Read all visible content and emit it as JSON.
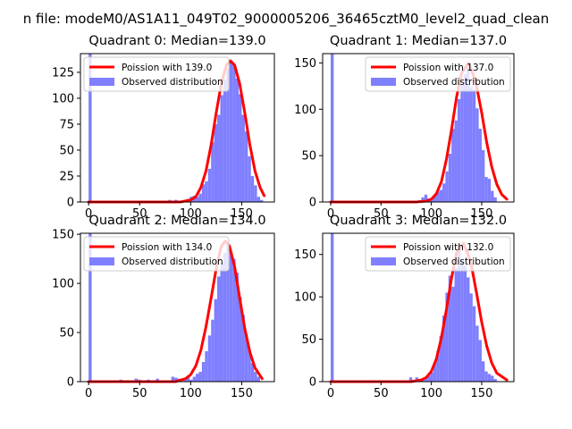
{
  "figure": {
    "suptitle": "n file: modeM0/AS1A11_049T02_9000005206_36465cztM0_level2_quad_clean"
  },
  "colors": {
    "hist": "#7f7fff",
    "poisson": "#ff0000",
    "axis": "#000000",
    "background": "#ffffff"
  },
  "chart_data": [
    {
      "type": "bar",
      "title": "Quadrant 0: Median=139.0",
      "xlim": [
        -8,
        182
      ],
      "ylim": [
        0,
        143
      ],
      "xticks": [
        0,
        50,
        100,
        150
      ],
      "yticks": [
        0,
        25,
        50,
        75,
        100,
        125
      ],
      "legend": {
        "placement": "top-left",
        "line_label": "Poission with 139.0",
        "hist_label": "Observed distribution"
      },
      "bin_width": 3,
      "hist": {
        "x": [
          0,
          78,
          84,
          87,
          93,
          96,
          99,
          102,
          105,
          108,
          111,
          114,
          117,
          120,
          123,
          126,
          129,
          132,
          135,
          138,
          141,
          144,
          147,
          150,
          153,
          156,
          159,
          162,
          165,
          168
        ],
        "y": [
          143,
          2,
          2,
          1,
          2,
          3,
          5,
          6,
          5,
          8,
          17,
          20,
          32,
          58,
          75,
          84,
          103,
          118,
          128,
          136,
          132,
          119,
          104,
          84,
          68,
          44,
          25,
          16,
          5,
          2
        ]
      },
      "poisson": {
        "mu": 139.0,
        "x": [
          0,
          90,
          100,
          105,
          110,
          115,
          120,
          125,
          130,
          135,
          139,
          143,
          148,
          153,
          158,
          163,
          168,
          172
        ],
        "y": [
          0,
          0,
          2,
          5,
          14,
          30,
          55,
          86,
          114,
          132,
          136,
          132,
          114,
          86,
          55,
          30,
          14,
          6
        ]
      }
    },
    {
      "type": "bar",
      "title": "Quadrant 1: Median=137.0",
      "xlim": [
        -8,
        182
      ],
      "ylim": [
        0,
        160
      ],
      "xticks": [
        0,
        50,
        100,
        150
      ],
      "yticks": [
        0,
        50,
        100,
        150
      ],
      "legend": {
        "placement": "top-right",
        "line_label": "Poission with 137.0",
        "hist_label": "Observed distribution"
      },
      "bin_width": 3,
      "hist": {
        "x": [
          0,
          87,
          90,
          93,
          96,
          99,
          102,
          105,
          108,
          111,
          114,
          117,
          120,
          123,
          126,
          129,
          132,
          135,
          138,
          141,
          144,
          147,
          150,
          153,
          156,
          159,
          162
        ],
        "y": [
          160,
          2,
          5,
          8,
          4,
          3,
          8,
          11,
          13,
          20,
          33,
          52,
          79,
          88,
          111,
          128,
          138,
          145,
          124,
          121,
          101,
          79,
          56,
          27,
          25,
          12,
          5
        ]
      },
      "poisson": {
        "mu": 137.0,
        "x": [
          0,
          85,
          95,
          100,
          105,
          110,
          115,
          120,
          125,
          130,
          137,
          144,
          150,
          155,
          160,
          165,
          170,
          175
        ],
        "y": [
          0,
          0,
          1,
          3,
          9,
          22,
          46,
          78,
          113,
          139,
          150,
          130,
          96,
          64,
          38,
          19,
          8,
          3
        ]
      }
    },
    {
      "type": "bar",
      "title": "Quadrant 2: Median=134.0",
      "xlim": [
        -8,
        182
      ],
      "ylim": [
        0,
        151
      ],
      "xticks": [
        0,
        50,
        100,
        150
      ],
      "yticks": [
        0,
        50,
        100,
        150
      ],
      "legend": {
        "placement": "top-left",
        "line_label": "Poission with 134.0",
        "hist_label": "Observed distribution"
      },
      "bin_width": 3,
      "hist": {
        "x": [
          0,
          30,
          45,
          48,
          57,
          66,
          81,
          84,
          87,
          93,
          96,
          99,
          102,
          105,
          108,
          111,
          114,
          117,
          120,
          123,
          126,
          129,
          132,
          135,
          138,
          141,
          144,
          147,
          150,
          153,
          156,
          159,
          162,
          165
        ],
        "y": [
          151,
          2,
          3,
          2,
          2,
          3,
          5,
          4,
          3,
          2,
          6,
          2,
          5,
          8,
          10,
          20,
          31,
          47,
          63,
          84,
          107,
          121,
          131,
          138,
          132,
          125,
          111,
          86,
          68,
          48,
          33,
          19,
          10,
          5
        ]
      },
      "poisson": {
        "mu": 134.0,
        "x": [
          0,
          85,
          95,
          100,
          105,
          110,
          115,
          120,
          125,
          130,
          134,
          138,
          143,
          148,
          153,
          158,
          163,
          170
        ],
        "y": [
          0,
          0,
          3,
          7,
          16,
          32,
          56,
          85,
          115,
          138,
          143,
          138,
          117,
          85,
          54,
          30,
          14,
          3
        ]
      }
    },
    {
      "type": "bar",
      "title": "Quadrant 3: Median=132.0",
      "xlim": [
        -8,
        182
      ],
      "ylim": [
        0,
        175
      ],
      "xticks": [
        0,
        50,
        100,
        150
      ],
      "yticks": [
        0,
        50,
        100,
        150
      ],
      "legend": {
        "placement": "top-right",
        "line_label": "Poission with 132.0",
        "hist_label": "Observed distribution"
      },
      "bin_width": 3,
      "hist": {
        "x": [
          0,
          78,
          81,
          84,
          87,
          90,
          93,
          96,
          99,
          102,
          105,
          108,
          111,
          114,
          117,
          120,
          123,
          126,
          129,
          132,
          135,
          138,
          141,
          144,
          147,
          150,
          153,
          156,
          159,
          162
        ],
        "y": [
          175,
          5,
          2,
          5,
          3,
          2,
          5,
          7,
          11,
          22,
          36,
          54,
          78,
          105,
          125,
          112,
          134,
          158,
          142,
          137,
          123,
          104,
          89,
          66,
          49,
          24,
          12,
          9,
          7,
          3
        ]
      },
      "poisson": {
        "mu": 132.0,
        "x": [
          0,
          80,
          90,
          95,
          100,
          105,
          110,
          115,
          120,
          125,
          132,
          139,
          145,
          150,
          155,
          160,
          165,
          175
        ],
        "y": [
          0,
          0,
          2,
          5,
          12,
          27,
          52,
          85,
          122,
          152,
          163,
          142,
          104,
          70,
          42,
          22,
          10,
          2
        ]
      }
    }
  ]
}
